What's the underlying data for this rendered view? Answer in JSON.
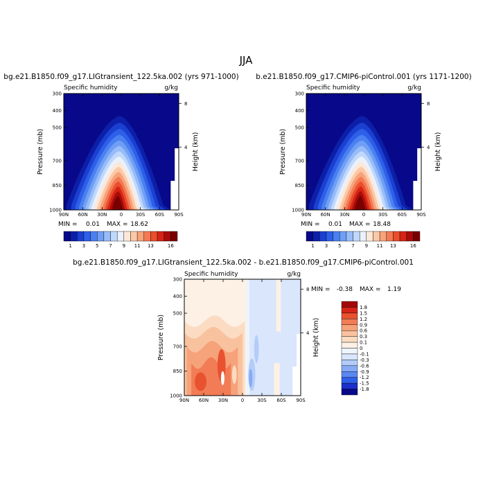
{
  "figure": {
    "season_title": "JJA"
  },
  "colors": {
    "full_scale": [
      "#08088a",
      "#0c1fa8",
      "#1b3fd1",
      "#2e5fe8",
      "#4a80f0",
      "#6f9ff5",
      "#97bcf8",
      "#c0d8fb",
      "#eaf1fd",
      "#fde8d8",
      "#fbc9a8",
      "#f7a37b",
      "#f37a52",
      "#ea4e2c",
      "#d52415",
      "#a80b0b",
      "#7a0000"
    ],
    "diff_scale": [
      "#08088a",
      "#1b2fcb",
      "#2e5fe8",
      "#5a88f2",
      "#86aaf5",
      "#b3ccf9",
      "#d9e6fc",
      "#eef4fe",
      "#fdf1e6",
      "#fbdcc2",
      "#f9c29f",
      "#f6a27a",
      "#f17c55",
      "#e8522f",
      "#d52415",
      "#a30808"
    ]
  },
  "chart_data": [
    {
      "type": "contour",
      "title": "bg.e21.B1850.f09_g17.LIGtransient_122.5ka.002 (yrs 971-1000)",
      "field_label": "Specific humidity",
      "units": "g/kg",
      "ylabel": "Pressure (mb)",
      "ylabel_right": "Height (km)",
      "x_ticks": [
        "90N",
        "60N",
        "30N",
        "0",
        "30S",
        "60S",
        "90S"
      ],
      "y_ticks": [
        "300",
        "400",
        "500",
        "700",
        "850",
        "1000"
      ],
      "height_ticks": [
        "8",
        "4"
      ],
      "stats": {
        "min_label": "MIN =",
        "min": "0.01",
        "max_label": "MAX =",
        "max": "18.62"
      },
      "colorbar_labels": [
        "1",
        "3",
        "5",
        "7",
        "9",
        "11",
        "13",
        "16"
      ]
    },
    {
      "type": "contour",
      "title": "b.e21.B1850.f09_g17.CMIP6-piControl.001 (yrs 1171-1200)",
      "field_label": "Specific humidity",
      "units": "g/kg",
      "ylabel": "Pressure (mb)",
      "ylabel_right": "Height (km)",
      "x_ticks": [
        "90N",
        "60N",
        "30N",
        "0",
        "30S",
        "60S",
        "90S"
      ],
      "y_ticks": [
        "300",
        "400",
        "500",
        "700",
        "850",
        "1000"
      ],
      "height_ticks": [
        "8",
        "4"
      ],
      "stats": {
        "min_label": "MIN =",
        "min": "0.01",
        "max_label": "MAX =",
        "max": "18.48"
      },
      "colorbar_labels": [
        "1",
        "3",
        "5",
        "7",
        "9",
        "11",
        "13",
        "16"
      ]
    },
    {
      "type": "contour",
      "title": "bg.e21.B1850.f09_g17.LIGtransient_122.5ka.002 - b.e21.B1850.f09_g17.CMIP6-piControl.001",
      "field_label": "Specific humidity",
      "units": "g/kg",
      "ylabel": "Pressure (mb)",
      "ylabel_right": "Height (km)",
      "x_ticks": [
        "90N",
        "60N",
        "30N",
        "0",
        "30S",
        "60S",
        "90S"
      ],
      "y_ticks": [
        "300",
        "400",
        "500",
        "700",
        "850",
        "1000"
      ],
      "height_ticks": [
        "8",
        "4"
      ],
      "stats": {
        "min_label": "MIN =",
        "min": "-0.38",
        "max_label": "MAX =",
        "max": "1.19"
      },
      "colorbar_labels": [
        "1.8",
        "1.5",
        "1.2",
        "0.9",
        "0.6",
        "0.3",
        "0.1",
        "0",
        "-0.1",
        "-0.3",
        "-0.6",
        "-0.9",
        "-1.2",
        "-1.5",
        "-1.8"
      ]
    }
  ]
}
